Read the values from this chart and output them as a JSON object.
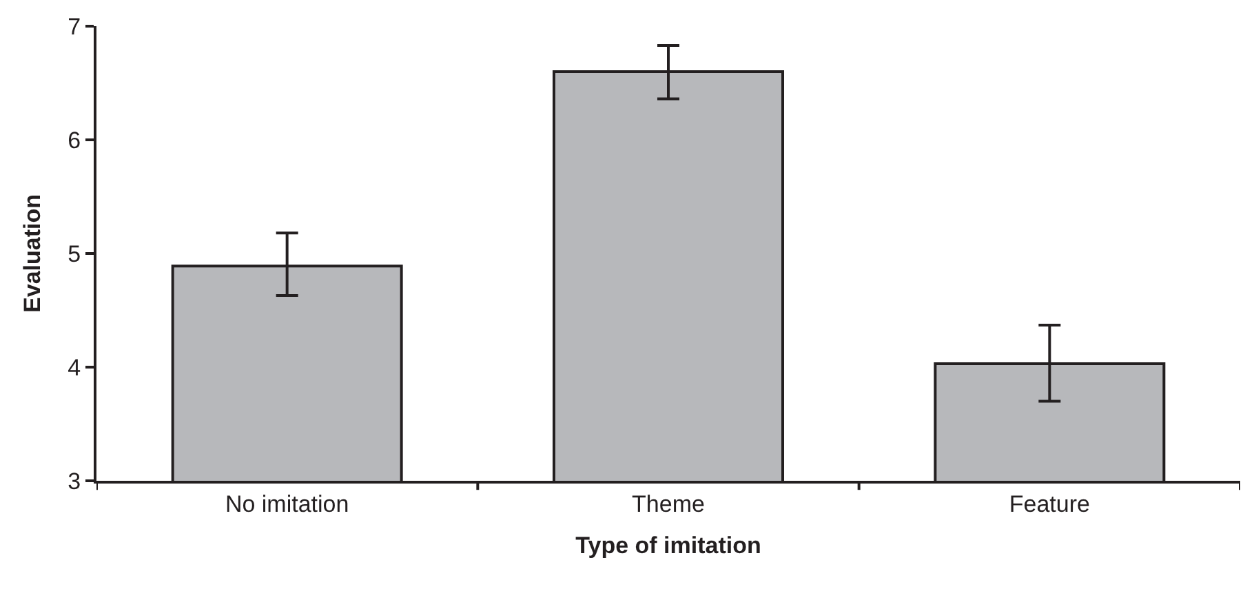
{
  "chart_data": {
    "type": "bar",
    "xlabel": "Type of imitation",
    "ylabel": "Evaluation",
    "categories": [
      "No imitation",
      "Theme",
      "Feature"
    ],
    "series": [
      {
        "color": "#b7b8bb",
        "values": [
          4.89,
          6.6,
          4.03
        ],
        "errors": [
          [
            4.63,
            5.18
          ],
          [
            6.36,
            6.83
          ],
          [
            3.7,
            4.37
          ]
        ]
      }
    ],
    "ylim": [
      3,
      7
    ],
    "yticks": [
      3,
      4,
      5,
      6,
      7
    ]
  }
}
